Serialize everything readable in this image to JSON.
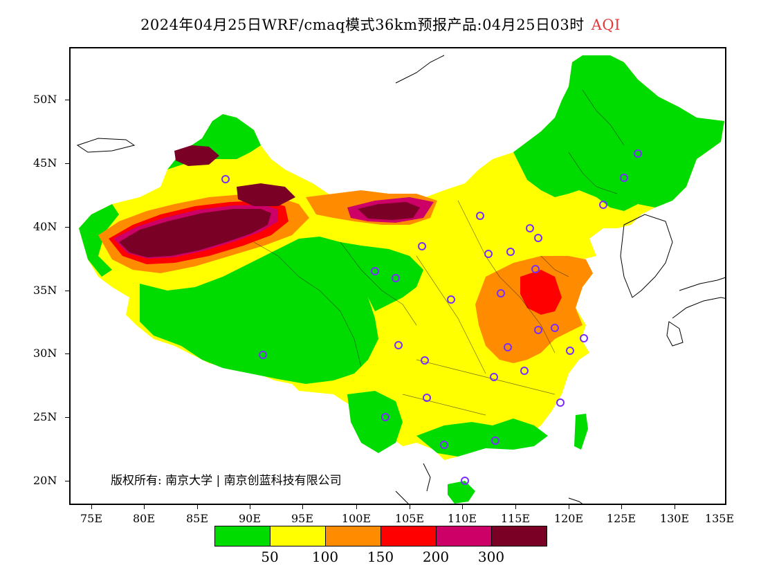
{
  "title": {
    "main": "2024年04月25日WRF/cmaq模式36km预报产品:04月25日03时",
    "variable": "AQI"
  },
  "axes": {
    "lat_labels": [
      "50N",
      "45N",
      "40N",
      "35N",
      "30N",
      "25N",
      "20N"
    ],
    "lon_labels": [
      "75E",
      "80E",
      "85E",
      "90E",
      "95E",
      "100E",
      "105E",
      "110E",
      "115E",
      "120E",
      "125E",
      "130E",
      "135E"
    ]
  },
  "copyright": "版权所有: 南京大学 | 南京创蓝科技有限公司",
  "legend": {
    "colors": [
      "#00dc00",
      "#ffff00",
      "#ff8c00",
      "#ff0000",
      "#cc0066",
      "#7a0026"
    ],
    "labels": [
      "50",
      "100",
      "150",
      "200",
      "300"
    ]
  },
  "map": {
    "land_default_color": "#ffff00",
    "ocean_color": "#ffffff",
    "station_marker_color": "#7a2cff"
  }
}
